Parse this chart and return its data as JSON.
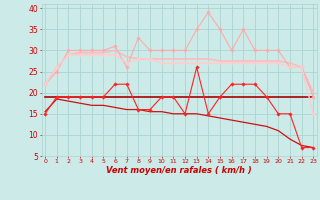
{
  "x": [
    0,
    1,
    2,
    3,
    4,
    5,
    6,
    7,
    8,
    9,
    10,
    11,
    12,
    13,
    14,
    15,
    16,
    17,
    18,
    19,
    20,
    21,
    22,
    23
  ],
  "series": [
    {
      "name": "rafales_max",
      "color": "#ffaaaa",
      "linewidth": 0.8,
      "marker": "D",
      "markersize": 1.8,
      "y": [
        22,
        25,
        30,
        30,
        30,
        30,
        31,
        26,
        33,
        30,
        30,
        30,
        30,
        35,
        39,
        35,
        30,
        35,
        30,
        30,
        30,
        26,
        26,
        19
      ]
    },
    {
      "name": "rafales_smooth",
      "color": "#ffbbbb",
      "linewidth": 1.2,
      "marker": null,
      "markersize": 0,
      "y": [
        22,
        26,
        29,
        29.5,
        29.5,
        29.5,
        30,
        28.5,
        28,
        28,
        28,
        28,
        28,
        28,
        28,
        27.5,
        27.5,
        27.5,
        27.5,
        27.5,
        27.5,
        27,
        26,
        20
      ]
    },
    {
      "name": "rafales_mean",
      "color": "#ffcccc",
      "linewidth": 1.0,
      "marker": "D",
      "markersize": 1.8,
      "y": [
        22,
        26,
        29,
        29,
        29,
        29,
        29,
        27,
        28,
        28,
        27,
        27,
        27,
        27,
        27,
        27,
        27,
        27,
        27,
        27,
        27,
        26,
        26,
        15
      ]
    },
    {
      "name": "vent_max",
      "color": "#ff2222",
      "linewidth": 0.8,
      "marker": "D",
      "markersize": 1.8,
      "y": [
        15,
        19,
        19,
        19,
        19,
        19,
        22,
        22,
        16,
        16,
        19,
        19,
        15,
        26,
        15,
        19,
        22,
        22,
        22,
        19,
        15,
        15,
        7,
        7
      ]
    },
    {
      "name": "vent_mean_flat",
      "color": "#aa0000",
      "linewidth": 1.2,
      "marker": null,
      "markersize": 0,
      "y": [
        19,
        19,
        19,
        19,
        19,
        19,
        19,
        19,
        19,
        19,
        19,
        19,
        19,
        19,
        19,
        19,
        19,
        19,
        19,
        19,
        19,
        19,
        19,
        19
      ]
    },
    {
      "name": "vent_trend",
      "color": "#cc1111",
      "linewidth": 0.9,
      "marker": null,
      "markersize": 0,
      "y": [
        15.5,
        18.5,
        18,
        17.5,
        17,
        17,
        16.5,
        16,
        16,
        15.5,
        15.5,
        15,
        15,
        15,
        14.5,
        14,
        13.5,
        13,
        12.5,
        12,
        11,
        9,
        7.5,
        7
      ]
    }
  ],
  "xlim": [
    -0.3,
    23.3
  ],
  "ylim": [
    5,
    41
  ],
  "yticks": [
    5,
    10,
    15,
    20,
    25,
    30,
    35,
    40
  ],
  "xticks": [
    0,
    1,
    2,
    3,
    4,
    5,
    6,
    7,
    8,
    9,
    10,
    11,
    12,
    13,
    14,
    15,
    16,
    17,
    18,
    19,
    20,
    21,
    22,
    23
  ],
  "xlabel": "Vent moyen/en rafales ( km/h )",
  "background_color": "#cceae8",
  "grid_color": "#aad4d0",
  "tick_color": "#cc0000",
  "label_color": "#cc0000"
}
